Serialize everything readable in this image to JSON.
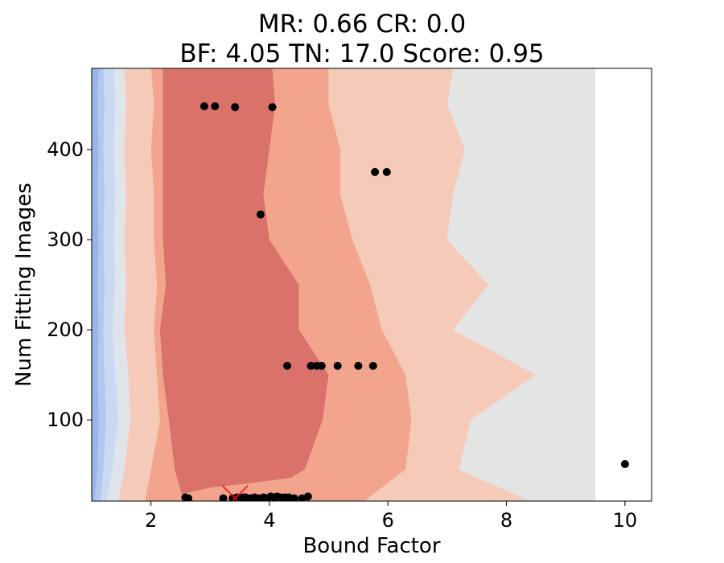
{
  "chart_data": {
    "type": "contour",
    "title_lines": [
      "MR: 0.66  CR: 0.0",
      "BF: 4.05  TN: 17.0  Score: 0.95"
    ],
    "xlabel": "Bound Factor",
    "ylabel": "Num Fitting Images",
    "xlim": [
      1.0,
      10.45
    ],
    "ylim": [
      10,
      490
    ],
    "x_ticks": [
      2,
      4,
      6,
      8,
      10
    ],
    "y_ticks": [
      100,
      200,
      300,
      400
    ],
    "x_tick_labels": [
      "2",
      "4",
      "6",
      "8",
      "10"
    ],
    "y_tick_labels": [
      "100",
      "200",
      "300",
      "400"
    ],
    "grid": false,
    "contour_band_colors": [
      "#b4c8ef",
      "#c9d8f3",
      "#dfe3ea",
      "#f5cab8",
      "#f2a48c",
      "#da726a",
      "#e3e4e4"
    ],
    "scatter_color": "#000000",
    "scatter_points": [
      [
        2.9,
        448
      ],
      [
        3.08,
        448
      ],
      [
        3.42,
        447
      ],
      [
        4.05,
        447
      ],
      [
        5.78,
        375
      ],
      [
        5.98,
        375
      ],
      [
        3.85,
        328
      ],
      [
        4.3,
        160
      ],
      [
        4.7,
        160
      ],
      [
        4.8,
        160
      ],
      [
        4.88,
        160
      ],
      [
        5.15,
        160
      ],
      [
        5.5,
        160
      ],
      [
        5.75,
        160
      ],
      [
        10.0,
        51
      ],
      [
        2.58,
        14
      ],
      [
        2.63,
        13
      ],
      [
        3.22,
        13
      ],
      [
        3.38,
        13
      ],
      [
        3.45,
        14
      ],
      [
        3.55,
        14
      ],
      [
        3.6,
        14
      ],
      [
        3.68,
        13
      ],
      [
        3.75,
        14
      ],
      [
        3.82,
        13
      ],
      [
        3.9,
        14
      ],
      [
        3.95,
        13
      ],
      [
        4.02,
        15
      ],
      [
        4.08,
        14
      ],
      [
        4.13,
        15
      ],
      [
        4.2,
        14
      ],
      [
        4.27,
        14
      ],
      [
        4.33,
        14
      ],
      [
        4.42,
        13
      ],
      [
        4.55,
        13
      ],
      [
        4.65,
        15
      ]
    ],
    "best_marker": {
      "x": 3.42,
      "y": 13,
      "color": "#ff0000"
    }
  }
}
